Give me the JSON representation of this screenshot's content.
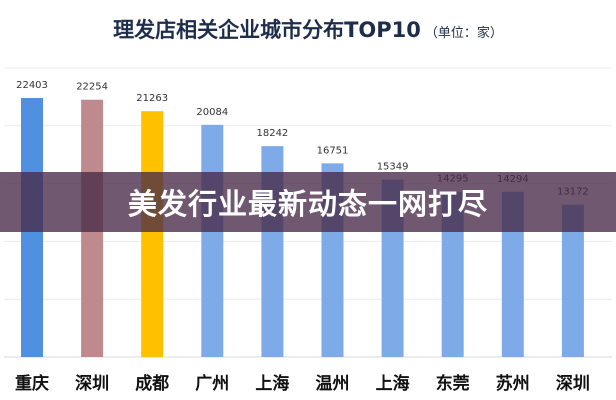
{
  "chart_data": {
    "type": "bar",
    "title": "理发店相关企业城市分布TOP10",
    "unit": "（单位：家）",
    "categories": [
      "重庆",
      "深圳",
      "成都",
      "广州",
      "上海",
      "温州",
      "上海",
      "东莞",
      "苏州",
      "深圳"
    ],
    "values": [
      22403,
      22254,
      21263,
      20084,
      18242,
      16751,
      15349,
      14295,
      14294,
      13172
    ],
    "colors": [
      "#4f90e0",
      "#bf8a8e",
      "#ffc000",
      "#7faae8",
      "#7faae8",
      "#7faae8",
      "#7faae8",
      "#7faae8",
      "#7faae8",
      "#7faae8"
    ],
    "ylim": [
      0,
      25000
    ],
    "grid": true,
    "data_labels": true
  },
  "banner": {
    "text": "美发行业最新动态一网打尽"
  }
}
